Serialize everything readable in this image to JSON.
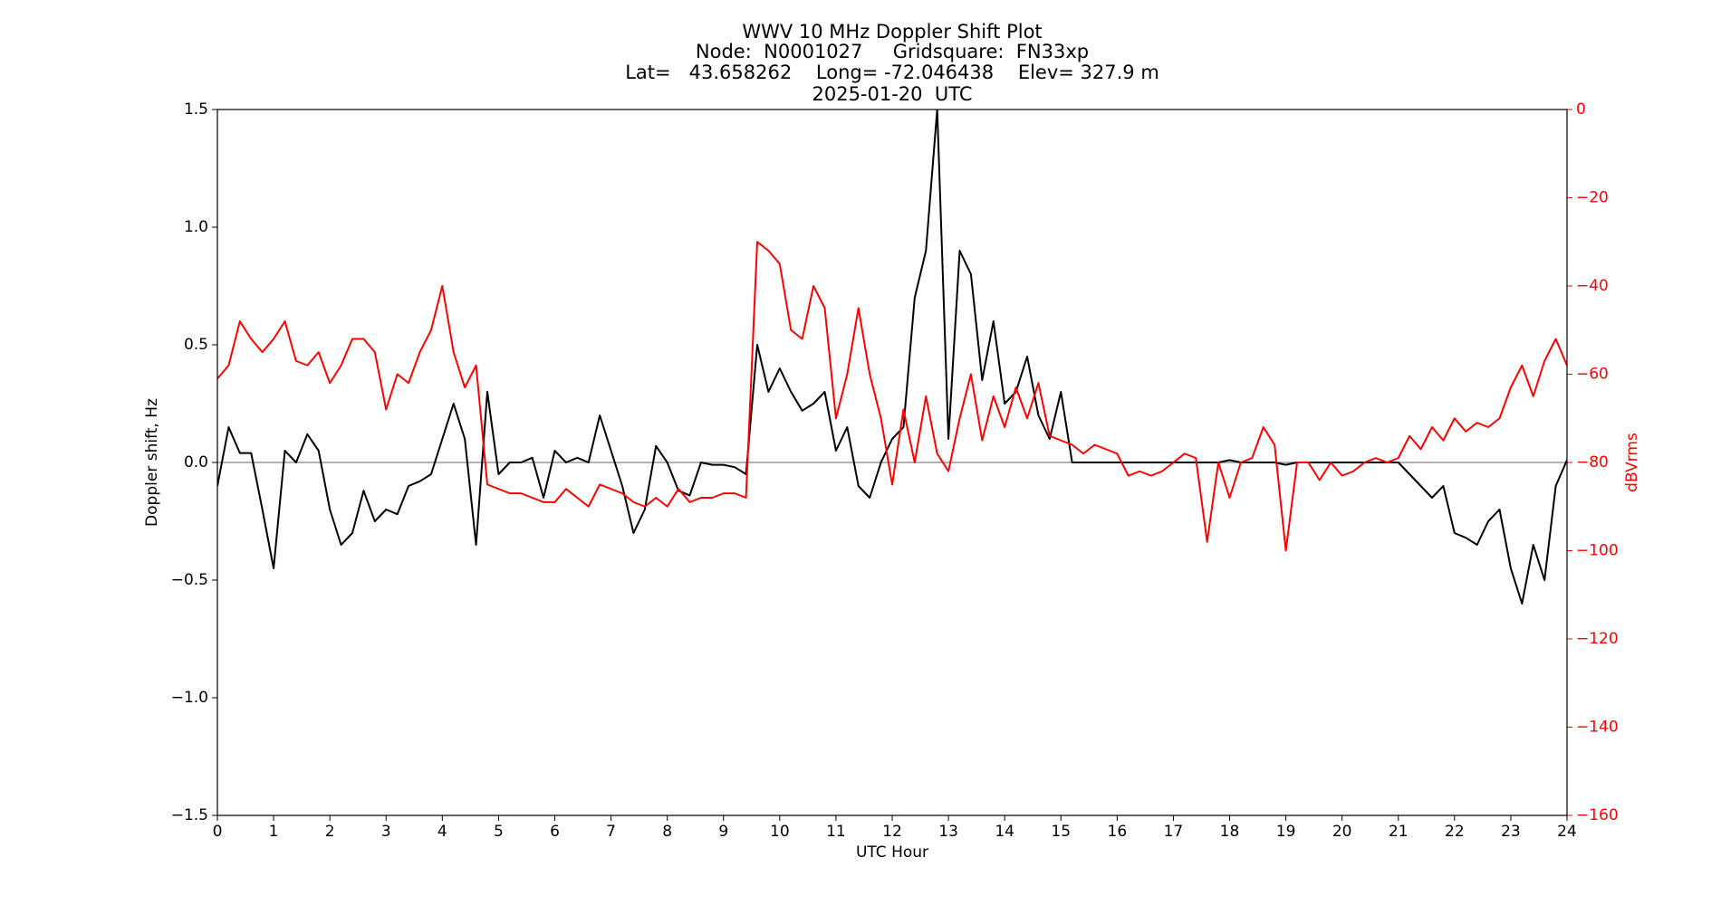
{
  "chart_data": {
    "type": "line",
    "title": "WWV 10 MHz Doppler Shift Plot",
    "subtitle": [
      "Node:  N0001027     Gridsquare:  FN33xp",
      "Lat=   43.658262    Long= -72.046438    Elev= 327.9 m",
      "2025-01-20  UTC"
    ],
    "xlabel": "UTC Hour",
    "ylabel": "Doppler shift, Hz",
    "y2label": "dBVrms",
    "y2color": "#ff0000",
    "xlim": [
      0,
      24
    ],
    "xticks": [
      0,
      1,
      2,
      3,
      4,
      5,
      6,
      7,
      8,
      9,
      10,
      11,
      12,
      13,
      14,
      15,
      16,
      17,
      18,
      19,
      20,
      21,
      22,
      23,
      24
    ],
    "ylim": [
      -1.5,
      1.5
    ],
    "yticks": [
      {
        "value": -1.5,
        "label": "−1.5"
      },
      {
        "value": -1.0,
        "label": "−1.0"
      },
      {
        "value": -0.5,
        "label": "−0.5"
      },
      {
        "value": 0,
        "label": "0.0"
      },
      {
        "value": 0.5,
        "label": "0.5"
      },
      {
        "value": 1.0,
        "label": "1.0"
      },
      {
        "value": 1.5,
        "label": "1.5"
      }
    ],
    "y2lim": [
      -160,
      0
    ],
    "y2ticks": [
      {
        "value": -160,
        "label": "−160"
      },
      {
        "value": -140,
        "label": "−140"
      },
      {
        "value": -120,
        "label": "−120"
      },
      {
        "value": -100,
        "label": "−100"
      },
      {
        "value": -80,
        "label": "−80"
      },
      {
        "value": -60,
        "label": "−60"
      },
      {
        "value": -40,
        "label": "−40"
      },
      {
        "value": -20,
        "label": "−20"
      },
      0
    ],
    "hline": 0,
    "hline_color": "#999999",
    "x": [
      0,
      0.2,
      0.4,
      0.6,
      0.8,
      1,
      1.2,
      1.4,
      1.6,
      1.8,
      2,
      2.2,
      2.4,
      2.6,
      2.8,
      3,
      3.2,
      3.4,
      3.6,
      3.8,
      4,
      4.2,
      4.4,
      4.6,
      4.8,
      5,
      5.2,
      5.4,
      5.6,
      5.8,
      6,
      6.2,
      6.4,
      6.6,
      6.8,
      7,
      7.2,
      7.4,
      7.6,
      7.8,
      8,
      8.2,
      8.4,
      8.6,
      8.8,
      9,
      9.2,
      9.4,
      9.6,
      9.8,
      10,
      10.2,
      10.4,
      10.6,
      10.8,
      11,
      11.2,
      11.4,
      11.6,
      11.8,
      12,
      12.2,
      12.4,
      12.6,
      12.8,
      13,
      13.2,
      13.4,
      13.6,
      13.8,
      14,
      14.2,
      14.4,
      14.6,
      14.8,
      15,
      15.2,
      15.4,
      15.6,
      15.8,
      16,
      16.2,
      16.4,
      16.6,
      16.8,
      17,
      17.2,
      17.4,
      17.6,
      17.8,
      18,
      18.2,
      18.4,
      18.6,
      18.8,
      19,
      19.2,
      19.4,
      19.6,
      19.8,
      20,
      20.2,
      20.4,
      20.6,
      20.8,
      21,
      21.2,
      21.4,
      21.6,
      21.8,
      22,
      22.2,
      22.4,
      22.6,
      22.8,
      23,
      23.2,
      23.4,
      23.6,
      23.8,
      24
    ],
    "series": [
      {
        "color": "#000000",
        "values": [
          -0.1,
          0.15,
          0.04,
          0.04,
          -0.2,
          -0.45,
          0.05,
          0.0,
          0.12,
          0.05,
          -0.2,
          -0.35,
          -0.3,
          -0.12,
          -0.25,
          -0.2,
          -0.22,
          -0.1,
          -0.08,
          -0.05,
          0.1,
          0.25,
          0.1,
          -0.35,
          0.3,
          -0.05,
          0.0,
          0.0,
          0.02,
          -0.15,
          0.05,
          0.0,
          0.02,
          0.0,
          0.2,
          0.05,
          -0.1,
          -0.3,
          -0.2,
          0.07,
          0.0,
          -0.12,
          -0.14,
          0.0,
          -0.01,
          -0.01,
          -0.02,
          -0.05,
          0.5,
          0.3,
          0.4,
          0.3,
          0.22,
          0.25,
          0.3,
          0.05,
          0.15,
          -0.1,
          -0.15,
          0.0,
          0.1,
          0.15,
          0.7,
          0.9,
          1.5,
          0.1,
          0.9,
          0.8,
          0.35,
          0.6,
          0.25,
          0.3,
          0.45,
          0.2,
          0.1,
          0.3,
          0.0,
          0.0,
          0.0,
          0.0,
          0.0,
          0.0,
          0.0,
          0.0,
          0.0,
          0.0,
          0.0,
          0.0,
          0.0,
          0.0,
          0.01,
          0.0,
          0.0,
          0.0,
          0.0,
          -0.01,
          0.0,
          0.0,
          0.0,
          0.0,
          0.0,
          0.0,
          0.0,
          0.0,
          0.0,
          0.0,
          -0.05,
          -0.1,
          -0.15,
          -0.1,
          -0.3,
          -0.32,
          -0.35,
          -0.25,
          -0.2,
          -0.45,
          -0.6,
          -0.35,
          -0.5,
          -0.1,
          0.01
        ]
      },
      {
        "color": "#ff0000",
        "axis": "y2",
        "values": [
          -61,
          -58,
          -48,
          -52,
          -55,
          -52,
          -48,
          -57,
          -58,
          -55,
          -62,
          -58,
          -52,
          -52,
          -55,
          -68,
          -60,
          -62,
          -55,
          -50,
          -40,
          -55,
          -63,
          -58,
          -85,
          -86,
          -87,
          -87,
          -88,
          -89,
          -89,
          -86,
          -88,
          -90,
          -85,
          -86,
          -87,
          -89,
          -90,
          -88,
          -90,
          -86,
          -89,
          -88,
          -88,
          -87,
          -87,
          -88,
          -30,
          -32,
          -35,
          -50,
          -52,
          -40,
          -45,
          -70,
          -60,
          -45,
          -60,
          -70,
          -85,
          -68,
          -80,
          -65,
          -78,
          -82,
          -70,
          -60,
          -75,
          -65,
          -72,
          -63,
          -70,
          -62,
          -74,
          -75,
          -76,
          -78,
          -76,
          -77,
          -78,
          -83,
          -82,
          -83,
          -82,
          -80,
          -78,
          -79,
          -98,
          -80,
          -88,
          -80,
          -79,
          -72,
          -76,
          -100,
          -80,
          -80,
          -84,
          -80,
          -83,
          -82,
          -80,
          -79,
          -80,
          -79,
          -74,
          -77,
          -72,
          -75,
          -70,
          -73,
          -71,
          -72,
          -70,
          -63,
          -58,
          -65,
          -57,
          -52,
          -58
        ]
      }
    ]
  }
}
